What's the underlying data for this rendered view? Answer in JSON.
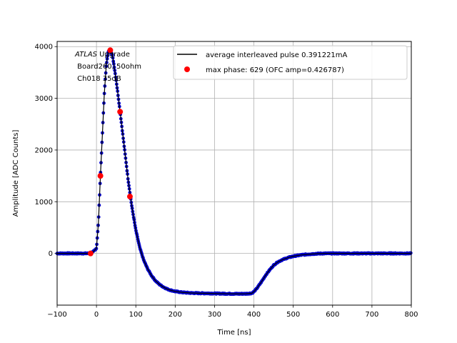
{
  "chart_data": {
    "type": "scatter",
    "xlabel": "Time [ns]",
    "ylabel": "Amplitude [ADC Counts]",
    "xlim": [
      -100,
      800
    ],
    "ylim": [
      -1000,
      4100
    ],
    "xticks": [
      -100,
      0,
      100,
      200,
      300,
      400,
      500,
      600,
      700,
      800
    ],
    "xtick_labels": [
      "−100",
      "0",
      "100",
      "200",
      "300",
      "400",
      "500",
      "600",
      "700",
      "800"
    ],
    "yticks": [
      0,
      1000,
      2000,
      3000,
      4000
    ],
    "ytick_labels": [
      "0",
      "1000",
      "2000",
      "3000",
      "4000"
    ],
    "grid": true,
    "legend_position": "top-right",
    "annotation": {
      "italic": "ATLAS",
      "line1_rest": " Upgrade",
      "line2": " Board260, 50ohm",
      "line3": " Ch018 35dB"
    },
    "colors": {
      "line": "#000000",
      "samples": "#0000cc",
      "max_phase": "#ff0000",
      "grid": "#b0b0b0"
    },
    "series": [
      {
        "name": "average interleaved pulse 0.391221mA",
        "kind": "line",
        "x": [
          -100,
          -40,
          -20,
          -10,
          0,
          5,
          10,
          15,
          20,
          25,
          30,
          35,
          40,
          45,
          50,
          55,
          60,
          70,
          80,
          90,
          100,
          110,
          120,
          130,
          140,
          150,
          160,
          170,
          180,
          190,
          200,
          220,
          240,
          260,
          280,
          300,
          320,
          340,
          360,
          380,
          395,
          400,
          405,
          410,
          420,
          430,
          440,
          450,
          460,
          470,
          480,
          490,
          500,
          520,
          540,
          560,
          580,
          600,
          620,
          650,
          700,
          750,
          800
        ],
        "y": [
          0,
          0,
          0,
          20,
          100,
          600,
          1500,
          2300,
          3100,
          3650,
          3900,
          3930,
          3850,
          3620,
          3350,
          3050,
          2740,
          2100,
          1450,
          900,
          450,
          110,
          -130,
          -300,
          -430,
          -530,
          -600,
          -650,
          -690,
          -715,
          -735,
          -755,
          -765,
          -770,
          -772,
          -775,
          -778,
          -780,
          -782,
          -780,
          -770,
          -740,
          -700,
          -650,
          -540,
          -420,
          -320,
          -230,
          -170,
          -130,
          -100,
          -75,
          -55,
          -30,
          -15,
          -5,
          0,
          0,
          0,
          0,
          0,
          0,
          0
        ]
      },
      {
        "name": "max phase: 629 (OFC amp=0.426787)",
        "kind": "scatter",
        "x": [
          -15,
          10,
          35,
          60,
          85
        ],
        "y": [
          0,
          1500,
          3930,
          2740,
          1100
        ]
      }
    ]
  }
}
